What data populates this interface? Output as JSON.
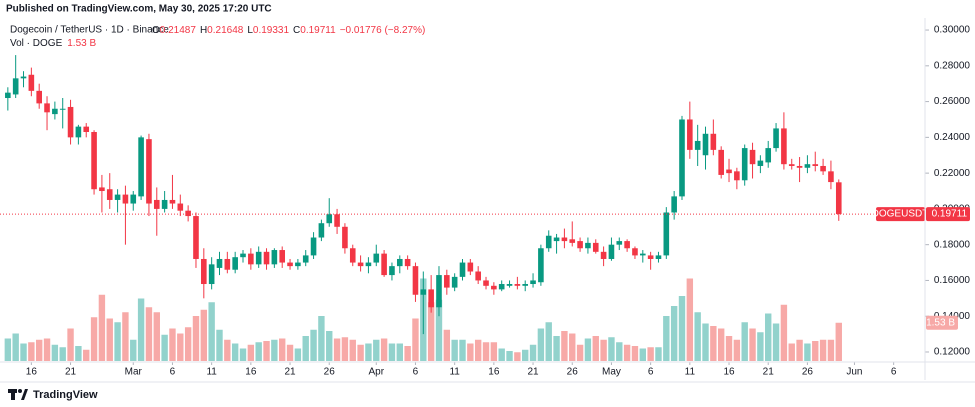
{
  "published": "Published on TradingView.com, May 30, 2025 17:20 UTC",
  "footer": "TradingView",
  "chart_data": {
    "type": "candlestick",
    "title": "Dogecoin / TetherUS · 1D · Binance",
    "ohlc_letters": [
      "O",
      "H",
      "L",
      "C"
    ],
    "change_label": "−0.01776 (−8.27%)",
    "symbol": "DOGEUSDT",
    "up_color": "#089981",
    "down_color": "#f23645",
    "volume_up_color": "#92d2cc",
    "volume_down_color": "#f7a9a7",
    "x": [
      "2025-02-13",
      "2025-02-14",
      "2025-02-15",
      "2025-02-16",
      "2025-02-17",
      "2025-02-18",
      "2025-02-19",
      "2025-02-20",
      "2025-02-21",
      "2025-02-22",
      "2025-02-23",
      "2025-02-24",
      "2025-02-25",
      "2025-02-26",
      "2025-02-27",
      "2025-02-28",
      "2025-03-01",
      "2025-03-02",
      "2025-03-03",
      "2025-03-04",
      "2025-03-05",
      "2025-03-06",
      "2025-03-07",
      "2025-03-08",
      "2025-03-09",
      "2025-03-10",
      "2025-03-11",
      "2025-03-12",
      "2025-03-13",
      "2025-03-14",
      "2025-03-15",
      "2025-03-16",
      "2025-03-17",
      "2025-03-18",
      "2025-03-19",
      "2025-03-20",
      "2025-03-21",
      "2025-03-22",
      "2025-03-23",
      "2025-03-24",
      "2025-03-25",
      "2025-03-26",
      "2025-03-27",
      "2025-03-28",
      "2025-03-29",
      "2025-03-30",
      "2025-03-31",
      "2025-04-01",
      "2025-04-02",
      "2025-04-03",
      "2025-04-04",
      "2025-04-05",
      "2025-04-06",
      "2025-04-07",
      "2025-04-08",
      "2025-04-09",
      "2025-04-10",
      "2025-04-11",
      "2025-04-12",
      "2025-04-13",
      "2025-04-14",
      "2025-04-15",
      "2025-04-16",
      "2025-04-17",
      "2025-04-18",
      "2025-04-19",
      "2025-04-20",
      "2025-04-21",
      "2025-04-22",
      "2025-04-23",
      "2025-04-24",
      "2025-04-25",
      "2025-04-26",
      "2025-04-27",
      "2025-04-28",
      "2025-04-29",
      "2025-04-30",
      "2025-05-01",
      "2025-05-02",
      "2025-05-03",
      "2025-05-04",
      "2025-05-05",
      "2025-05-06",
      "2025-05-07",
      "2025-05-08",
      "2025-05-09",
      "2025-05-10",
      "2025-05-11",
      "2025-05-12",
      "2025-05-13",
      "2025-05-14",
      "2025-05-15",
      "2025-05-16",
      "2025-05-17",
      "2025-05-18",
      "2025-05-19",
      "2025-05-20",
      "2025-05-21",
      "2025-05-22",
      "2025-05-23",
      "2025-05-24",
      "2025-05-25",
      "2025-05-26",
      "2025-05-27",
      "2025-05-28",
      "2025-05-29",
      "2025-05-30"
    ],
    "open": [
      0.262,
      0.264,
      0.273,
      0.275,
      0.266,
      0.259,
      0.253,
      0.256,
      0.257,
      0.24,
      0.246,
      0.243,
      0.212,
      0.211,
      0.205,
      0.208,
      0.203,
      0.207,
      0.239,
      0.205,
      0.2,
      0.205,
      0.203,
      0.199,
      0.196,
      0.172,
      0.158,
      0.167,
      0.172,
      0.166,
      0.173,
      0.175,
      0.169,
      0.176,
      0.169,
      0.177,
      0.17,
      0.168,
      0.17,
      0.174,
      0.184,
      0.192,
      0.197,
      0.19,
      0.178,
      0.17,
      0.168,
      0.17,
      0.175,
      0.163,
      0.168,
      0.172,
      0.168,
      0.152,
      0.155,
      0.145,
      0.163,
      0.156,
      0.162,
      0.17,
      0.165,
      0.16,
      0.157,
      0.155,
      0.157,
      0.158,
      0.157,
      0.158,
      0.159,
      0.178,
      0.182,
      0.184,
      0.183,
      0.182,
      0.178,
      0.181,
      0.176,
      0.172,
      0.18,
      0.182,
      0.178,
      0.174,
      0.174,
      0.172,
      0.174,
      0.198,
      0.207,
      0.25,
      0.233,
      0.23,
      0.242,
      0.233,
      0.222,
      0.221,
      0.216,
      0.233,
      0.224,
      0.226,
      0.234,
      0.245,
      0.225,
      0.224,
      0.223,
      0.225,
      0.224,
      0.221,
      0.21487
    ],
    "high": [
      0.268,
      0.286,
      0.277,
      0.279,
      0.27,
      0.263,
      0.26,
      0.262,
      0.261,
      0.247,
      0.248,
      0.244,
      0.219,
      0.22,
      0.211,
      0.213,
      0.21,
      0.241,
      0.242,
      0.212,
      0.21,
      0.219,
      0.208,
      0.202,
      0.198,
      0.178,
      0.173,
      0.176,
      0.176,
      0.176,
      0.177,
      0.178,
      0.179,
      0.178,
      0.178,
      0.179,
      0.172,
      0.172,
      0.177,
      0.187,
      0.194,
      0.206,
      0.2,
      0.192,
      0.18,
      0.174,
      0.173,
      0.18,
      0.177,
      0.17,
      0.174,
      0.174,
      0.17,
      0.165,
      0.163,
      0.168,
      0.166,
      0.164,
      0.172,
      0.172,
      0.168,
      0.162,
      0.159,
      0.16,
      0.16,
      0.162,
      0.16,
      0.164,
      0.18,
      0.188,
      0.186,
      0.189,
      0.193,
      0.184,
      0.184,
      0.183,
      0.179,
      0.184,
      0.184,
      0.183,
      0.179,
      0.177,
      0.176,
      0.176,
      0.201,
      0.21,
      0.252,
      0.26,
      0.247,
      0.246,
      0.25,
      0.235,
      0.228,
      0.223,
      0.236,
      0.237,
      0.23,
      0.238,
      0.248,
      0.254,
      0.228,
      0.229,
      0.23,
      0.232,
      0.228,
      0.227,
      0.21648
    ],
    "low": [
      0.255,
      0.262,
      0.268,
      0.263,
      0.256,
      0.244,
      0.25,
      0.245,
      0.236,
      0.236,
      0.24,
      0.208,
      0.198,
      0.2,
      0.198,
      0.18,
      0.199,
      0.205,
      0.196,
      0.185,
      0.198,
      0.2,
      0.196,
      0.193,
      0.167,
      0.15,
      0.155,
      0.163,
      0.164,
      0.164,
      0.17,
      0.166,
      0.167,
      0.166,
      0.167,
      0.167,
      0.166,
      0.166,
      0.168,
      0.172,
      0.182,
      0.19,
      0.186,
      0.175,
      0.168,
      0.165,
      0.164,
      0.168,
      0.162,
      0.16,
      0.164,
      0.166,
      0.148,
      0.13,
      0.142,
      0.14,
      0.152,
      0.154,
      0.16,
      0.163,
      0.158,
      0.155,
      0.152,
      0.154,
      0.156,
      0.155,
      0.154,
      0.156,
      0.157,
      0.176,
      0.175,
      0.178,
      0.179,
      0.176,
      0.175,
      0.175,
      0.168,
      0.171,
      0.177,
      0.176,
      0.172,
      0.17,
      0.166,
      0.17,
      0.172,
      0.194,
      0.205,
      0.228,
      0.224,
      0.222,
      0.23,
      0.217,
      0.215,
      0.211,
      0.213,
      0.217,
      0.22,
      0.223,
      0.232,
      0.222,
      0.222,
      0.215,
      0.22,
      0.221,
      0.219,
      0.211,
      0.19331
    ],
    "close": [
      0.265,
      0.273,
      0.274,
      0.266,
      0.259,
      0.254,
      0.256,
      0.256,
      0.24,
      0.246,
      0.243,
      0.211,
      0.21,
      0.205,
      0.208,
      0.203,
      0.208,
      0.24,
      0.203,
      0.2,
      0.205,
      0.203,
      0.199,
      0.196,
      0.172,
      0.158,
      0.169,
      0.172,
      0.166,
      0.173,
      0.175,
      0.169,
      0.176,
      0.169,
      0.177,
      0.17,
      0.168,
      0.17,
      0.174,
      0.184,
      0.192,
      0.197,
      0.19,
      0.178,
      0.17,
      0.168,
      0.17,
      0.175,
      0.163,
      0.168,
      0.172,
      0.168,
      0.152,
      0.155,
      0.145,
      0.163,
      0.156,
      0.162,
      0.17,
      0.165,
      0.16,
      0.157,
      0.155,
      0.158,
      0.158,
      0.157,
      0.158,
      0.16,
      0.178,
      0.185,
      0.184,
      0.182,
      0.181,
      0.178,
      0.181,
      0.176,
      0.172,
      0.18,
      0.182,
      0.178,
      0.174,
      0.175,
      0.172,
      0.174,
      0.198,
      0.207,
      0.25,
      0.233,
      0.238,
      0.242,
      0.233,
      0.219,
      0.22,
      0.216,
      0.234,
      0.225,
      0.227,
      0.234,
      0.245,
      0.225,
      0.224,
      0.223,
      0.225,
      0.224,
      0.221,
      0.215,
      0.19711
    ],
    "volume": {
      "name": "Vol · DOGE",
      "label": "1.53 B",
      "values": [
        0.9,
        1.1,
        0.7,
        0.75,
        0.85,
        0.9,
        0.65,
        0.55,
        1.3,
        0.6,
        0.45,
        1.75,
        2.65,
        1.7,
        1.55,
        1.95,
        0.85,
        2.5,
        2.15,
        1.95,
        1.05,
        1.3,
        1.1,
        1.35,
        1.8,
        2.05,
        2.35,
        1.25,
        0.85,
        0.7,
        0.5,
        0.65,
        0.75,
        0.8,
        0.85,
        0.9,
        0.65,
        0.5,
        1.0,
        1.25,
        1.8,
        1.2,
        0.9,
        0.95,
        0.85,
        0.65,
        0.7,
        0.85,
        0.9,
        0.7,
        0.7,
        0.6,
        1.7,
        3.3,
        2.35,
        2.45,
        1.25,
        0.85,
        0.85,
        0.7,
        0.85,
        0.75,
        0.75,
        0.5,
        0.4,
        0.35,
        0.45,
        0.65,
        1.3,
        1.55,
        1.0,
        1.2,
        1.1,
        0.65,
        0.9,
        1.0,
        0.85,
        0.95,
        0.75,
        0.65,
        0.6,
        0.5,
        0.55,
        0.55,
        1.8,
        2.2,
        2.6,
        3.3,
        1.95,
        1.5,
        1.4,
        1.3,
        1.0,
        0.85,
        1.55,
        1.3,
        1.15,
        1.9,
        1.5,
        2.25,
        0.7,
        0.85,
        0.7,
        0.8,
        0.85,
        0.85,
        1.53
      ]
    },
    "volume_ylim": [
      0,
      8
    ],
    "xlim": [
      "2025-02-12",
      "2025-06-10"
    ],
    "xticks": [
      {
        "value": "2025-02-16",
        "label": "16"
      },
      {
        "value": "2025-02-21",
        "label": "21"
      },
      {
        "value": "2025-03-01",
        "label": "Mar"
      },
      {
        "value": "2025-03-06",
        "label": "6"
      },
      {
        "value": "2025-03-11",
        "label": "11"
      },
      {
        "value": "2025-03-16",
        "label": "16"
      },
      {
        "value": "2025-03-21",
        "label": "21"
      },
      {
        "value": "2025-03-26",
        "label": "26"
      },
      {
        "value": "2025-04-01",
        "label": "Apr"
      },
      {
        "value": "2025-04-06",
        "label": "6"
      },
      {
        "value": "2025-04-11",
        "label": "11"
      },
      {
        "value": "2025-04-16",
        "label": "16"
      },
      {
        "value": "2025-04-21",
        "label": "21"
      },
      {
        "value": "2025-04-26",
        "label": "26"
      },
      {
        "value": "2025-05-01",
        "label": "May"
      },
      {
        "value": "2025-05-06",
        "label": "6"
      },
      {
        "value": "2025-05-11",
        "label": "11"
      },
      {
        "value": "2025-05-16",
        "label": "16"
      },
      {
        "value": "2025-05-21",
        "label": "21"
      },
      {
        "value": "2025-05-26",
        "label": "26"
      },
      {
        "value": "2025-06-01",
        "label": "Jun"
      },
      {
        "value": "2025-06-06",
        "label": "6"
      }
    ],
    "ylim": [
      0.1144,
      0.3045
    ],
    "yticks": [
      {
        "value": 0.12,
        "label": "0.12000"
      },
      {
        "value": 0.14,
        "label": "0.14000"
      },
      {
        "value": 0.16,
        "label": "0.16000"
      },
      {
        "value": 0.18,
        "label": "0.18000"
      },
      {
        "value": 0.2,
        "label": "0.20000"
      },
      {
        "value": 0.22,
        "label": "0.22000"
      },
      {
        "value": 0.24,
        "label": "0.24000"
      },
      {
        "value": 0.26,
        "label": "0.26000"
      },
      {
        "value": 0.28,
        "label": "0.28000"
      },
      {
        "value": 0.3,
        "label": "0.30000"
      }
    ]
  }
}
